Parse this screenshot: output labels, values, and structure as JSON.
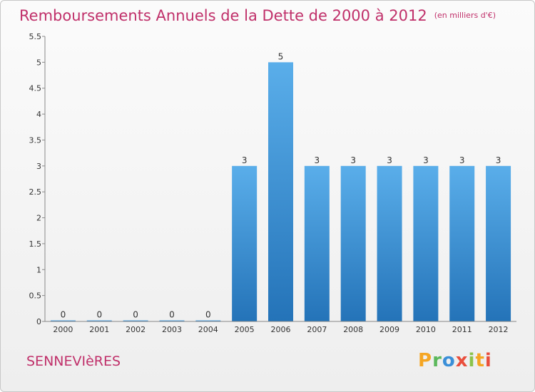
{
  "chart_data": {
    "type": "bar",
    "title": "Remboursements Annuels de la Dette de 2000 à 2012",
    "unit": "(en milliers d'€)",
    "categories": [
      "2000",
      "2001",
      "2002",
      "2003",
      "2004",
      "2005",
      "2006",
      "2007",
      "2008",
      "2009",
      "2010",
      "2011",
      "2012"
    ],
    "values": [
      0,
      0,
      0,
      0,
      0,
      3,
      5,
      3,
      3,
      3,
      3,
      3,
      3
    ],
    "data_labels": [
      "0",
      "0",
      "0",
      "0",
      "0",
      "3",
      "5",
      "3",
      "3",
      "3",
      "3",
      "3",
      "3"
    ],
    "ylim": [
      0,
      5.5
    ],
    "yticks": [
      "0",
      "0.5",
      "1",
      "1.5",
      "2",
      "2.5",
      "3",
      "3.5",
      "4",
      "4.5",
      "5",
      "5.5"
    ],
    "xlabel": "",
    "ylabel": "",
    "grid": false,
    "bar_color": "#3a8fd8"
  },
  "commune": "SENNEVIèRES",
  "logo": {
    "letters": [
      "P",
      "r",
      "o",
      "x",
      "i",
      "t",
      "i"
    ],
    "colors": [
      "#f5a623",
      "#5cb85c",
      "#3a8fd8",
      "#e94e3c",
      "#8bc34a",
      "#f5a623",
      "#e94e3c"
    ]
  }
}
